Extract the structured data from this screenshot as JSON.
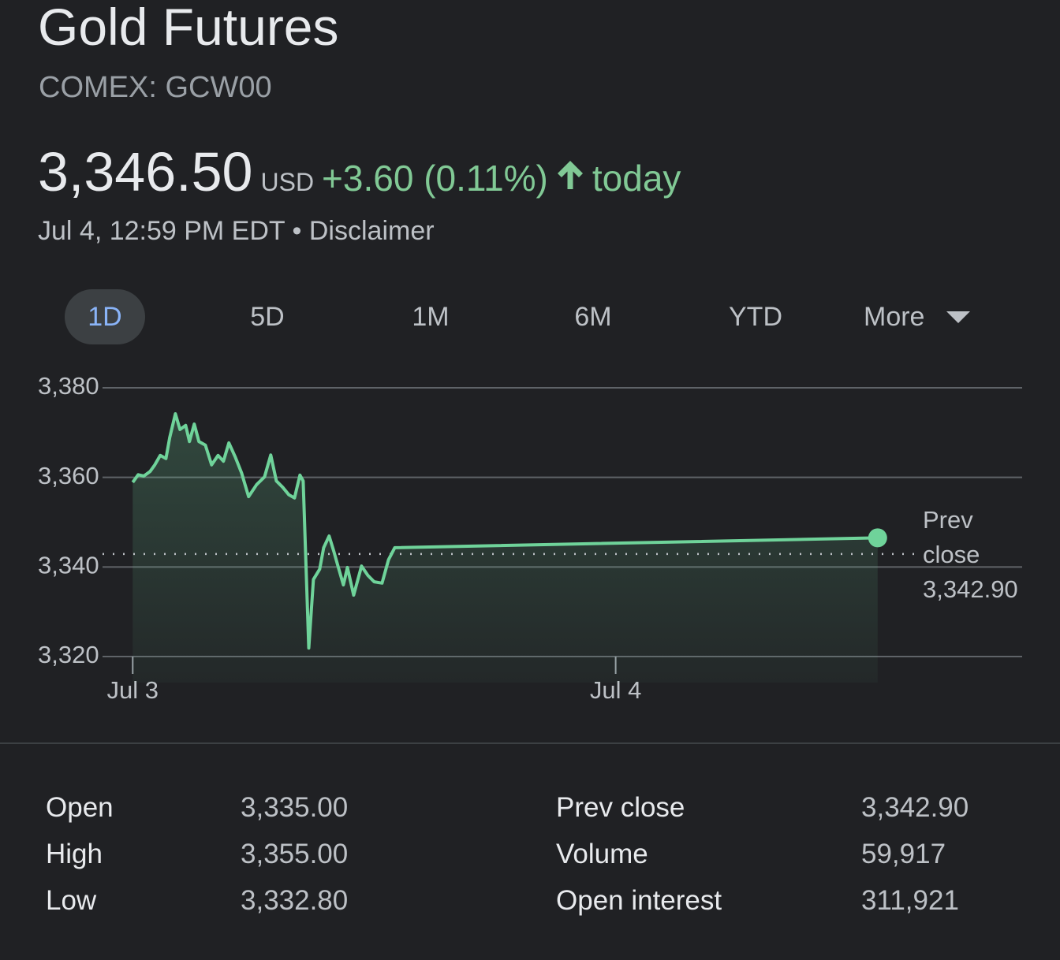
{
  "header": {
    "title": "Gold Futures",
    "exchange": "COMEX: GCW00",
    "price": "3,346.50",
    "currency": "USD",
    "change": "+3.60 (0.11%)",
    "period": "today",
    "timestamp": "Jul 4, 12:59 PM EDT",
    "disclaimer": "Disclaimer"
  },
  "tabs": {
    "items": [
      "1D",
      "5D",
      "1M",
      "6M",
      "YTD",
      "More"
    ],
    "selected": 0
  },
  "chart_data": {
    "type": "line",
    "color": "#6fd39a",
    "x": [
      0,
      0.27,
      0.55,
      0.86,
      1.1,
      1.37,
      1.65,
      1.84,
      2.12,
      2.35,
      2.63,
      2.82,
      3.06,
      3.29,
      3.61,
      3.92,
      4.24,
      4.51,
      4.78,
      5.1,
      5.41,
      5.76,
      6.16,
      6.55,
      6.86,
      7.14,
      7.45,
      7.76,
      8.04,
      8.31,
      8.47,
      8.75,
      8.98,
      9.29,
      9.49,
      9.76,
      10.0,
      10.2,
      10.47,
      10.67,
      10.98,
      11.37,
      11.69,
      12.0,
      12.39,
      12.71,
      13.02,
      37.02
    ],
    "values": [
      3358.9,
      3360.6,
      3360.3,
      3361.3,
      3362.8,
      3364.9,
      3364.2,
      3368.9,
      3374.2,
      3370.7,
      3371.6,
      3368.0,
      3371.9,
      3368.0,
      3367.2,
      3362.8,
      3364.9,
      3363.6,
      3367.7,
      3364.5,
      3361.0,
      3355.7,
      3358.4,
      3360.1,
      3365.0,
      3359.2,
      3357.8,
      3356.1,
      3355.4,
      3360.5,
      3359.2,
      3321.9,
      3337.2,
      3339.5,
      3344.3,
      3346.9,
      3343.4,
      3340.2,
      3336.0,
      3339.9,
      3333.7,
      3340.2,
      3338.1,
      3336.7,
      3336.4,
      3341.6,
      3344.3,
      3346.5
    ],
    "xlim": [
      -1.5,
      44.2
    ],
    "xticks": [
      {
        "value": 0,
        "label": "Jul 3"
      },
      {
        "value": 24,
        "label": "Jul 4"
      }
    ],
    "ylim": [
      3317,
      3380
    ],
    "yticks": [
      {
        "value": 3320,
        "label": "3,320"
      },
      {
        "value": 3340,
        "label": "3,340"
      },
      {
        "value": 3360,
        "label": "3,360"
      },
      {
        "value": 3380,
        "label": "3,380"
      }
    ],
    "grid": true,
    "reference_line": {
      "label": "Prev close",
      "value": 3342.9,
      "value_label": "3,342.90"
    }
  },
  "stats": {
    "rows": [
      [
        "Open",
        "3,335.00",
        "Prev close",
        "3,342.90"
      ],
      [
        "High",
        "3,355.00",
        "Volume",
        "59,917"
      ],
      [
        "Low",
        "3,332.80",
        "Open interest",
        "311,921"
      ]
    ]
  }
}
